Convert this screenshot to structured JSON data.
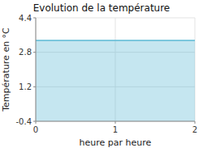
{
  "chart_data": {
    "type": "area",
    "title": "Evolution de la température",
    "x_label": "heure par heure",
    "y_label": "Température en °C",
    "x": [
      0,
      2
    ],
    "values": [
      3.35,
      3.35
    ],
    "color": "#5ab8d4",
    "xlim": [
      0,
      2
    ],
    "ylim": [
      -0.4,
      4.4
    ],
    "xticks": [
      0,
      1,
      2
    ],
    "yticks": [
      -0.4,
      1.2,
      2.8,
      4.4
    ],
    "grid": true
  }
}
